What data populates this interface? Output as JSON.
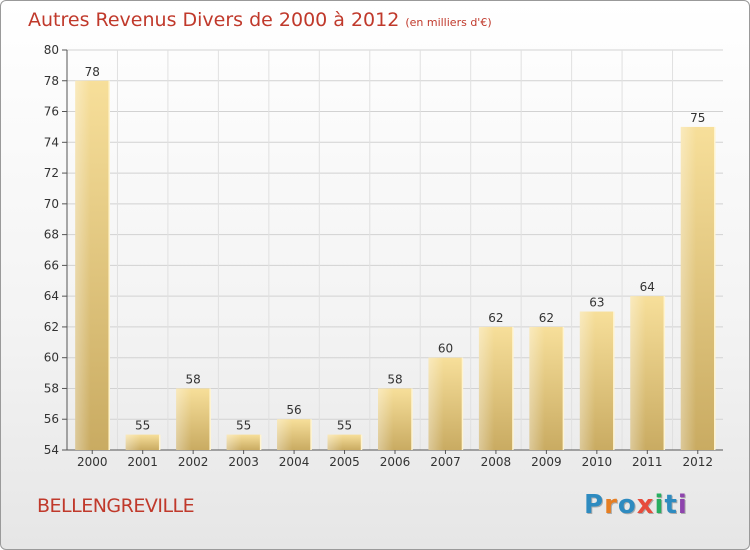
{
  "chart_data": {
    "type": "bar",
    "title": "Autres Revenus Divers de 2000 à 2012",
    "unit_label": "(en milliers d'€)",
    "categories": [
      "2000",
      "2001",
      "2002",
      "2003",
      "2004",
      "2005",
      "2006",
      "2007",
      "2008",
      "2009",
      "2010",
      "2011",
      "2012"
    ],
    "values": [
      78,
      55,
      58,
      55,
      56,
      55,
      58,
      60,
      62,
      62,
      63,
      64,
      75
    ],
    "ylim": [
      54,
      80
    ],
    "yticks": [
      54,
      56,
      58,
      60,
      62,
      64,
      66,
      68,
      70,
      72,
      74,
      76,
      78,
      80
    ],
    "grid": true,
    "bar_color": "#e7c97a"
  },
  "commune": "BELLENGREVILLE",
  "logo": {
    "text": "Proxiti",
    "colors": [
      "#2e8bc0",
      "#e67e22",
      "#2e8bc0",
      "#e74c3c",
      "#27ae60",
      "#2e8bc0",
      "#8e44ad"
    ]
  }
}
